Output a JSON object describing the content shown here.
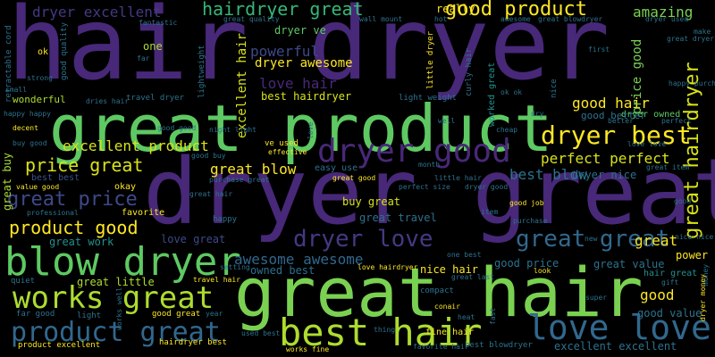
{
  "background": "#000000",
  "palette": {
    "dark_purple": "#482878",
    "blue": "#3b528b",
    "teal": "#2c728e",
    "teal_green": "#21918c",
    "green": "#28ae80",
    "light_green": "#5ec962",
    "lime": "#addc30",
    "yellow": "#fde725"
  },
  "words": [
    {
      "text": "hair dryer",
      "color": "#482878"
    },
    {
      "text": "dryer great",
      "color": "#482878"
    },
    {
      "text": "great product",
      "color": "#5ec962"
    },
    {
      "text": "great hair",
      "color": "#7ad151"
    },
    {
      "text": "blow dryer",
      "color": "#5ec962"
    },
    {
      "text": "dryer good",
      "color": "#482878"
    },
    {
      "text": "best hair",
      "color": "#addc30"
    },
    {
      "text": "works great",
      "color": "#addc30"
    },
    {
      "text": "love love",
      "color": "#31688e"
    },
    {
      "text": "product great",
      "color": "#31688e"
    },
    {
      "text": "great hairdryer",
      "color": "#d8e219"
    },
    {
      "text": "dryer best",
      "color": "#fde725"
    },
    {
      "text": "great great",
      "color": "#31688e"
    },
    {
      "text": "dryer love",
      "color": "#443983"
    },
    {
      "text": "good product",
      "color": "#fde725"
    },
    {
      "text": "hairdryer great",
      "color": "#35b779"
    },
    {
      "text": "great price",
      "color": "#3e4989"
    },
    {
      "text": "price great",
      "color": "#d8e219"
    },
    {
      "text": "product good",
      "color": "#fde725"
    },
    {
      "text": "awesome awesome",
      "color": "#31688e"
    },
    {
      "text": "dryer excellent",
      "color": "#443983"
    },
    {
      "text": "excellent product",
      "color": "#d8e219"
    },
    {
      "text": "perfect perfect",
      "color": "#d8e219"
    },
    {
      "text": "great blow",
      "color": "#fde725"
    },
    {
      "text": "love hair",
      "color": "#482878"
    },
    {
      "text": "powerful",
      "color": "#3e4989"
    },
    {
      "text": "good hair",
      "color": "#fde725"
    },
    {
      "text": "amazing",
      "color": "#7ad151"
    },
    {
      "text": "best blow",
      "color": "#2c728e"
    },
    {
      "text": "dryer awesome",
      "color": "#fde725"
    },
    {
      "text": "dryer ve",
      "color": "#5ec962"
    },
    {
      "text": "price good",
      "color": "#7ad151"
    },
    {
      "text": "best hairdryer",
      "color": "#d8e219"
    },
    {
      "text": "excellent hair",
      "color": "#d8e219"
    },
    {
      "text": "dryer owned",
      "color": "#5ec962"
    },
    {
      "text": "great value",
      "color": "#2c728e"
    },
    {
      "text": "good price",
      "color": "#2c728e"
    },
    {
      "text": "love great",
      "color": "#3e4989"
    },
    {
      "text": "great work",
      "color": "#21918c"
    },
    {
      "text": "great little",
      "color": "#addc30"
    },
    {
      "text": "buy great",
      "color": "#d8e219"
    },
    {
      "text": "great travel",
      "color": "#2c728e"
    },
    {
      "text": "nice hair",
      "color": "#fde725"
    },
    {
      "text": "owned best",
      "color": "#2c728e"
    },
    {
      "text": "good value",
      "color": "#2c728e"
    },
    {
      "text": "excellent excellent",
      "color": "#2c728e"
    },
    {
      "text": "power",
      "color": "#fde725"
    },
    {
      "text": "good",
      "color": "#fde725"
    },
    {
      "text": "hair great",
      "color": "#21918c"
    },
    {
      "text": "dryer nice",
      "color": "#2c728e"
    },
    {
      "text": "good better",
      "color": "#2c728e"
    },
    {
      "text": "great buy",
      "color": "#addc30"
    },
    {
      "text": "best best",
      "color": "#3b528b"
    },
    {
      "text": "one",
      "color": "#addc30"
    },
    {
      "text": "really",
      "color": "#fde725"
    },
    {
      "text": "good quality",
      "color": "#2c728e"
    },
    {
      "text": "great quality",
      "color": "#2c728e"
    },
    {
      "text": "wall mount",
      "color": "#2c728e"
    },
    {
      "text": "great blowdryer",
      "color": "#2c728e"
    },
    {
      "text": "dryer used",
      "color": "#2c728e"
    },
    {
      "text": "fantastic",
      "color": "#2c728e"
    },
    {
      "text": "lightweight",
      "color": "#2c728e"
    },
    {
      "text": "retractable cord",
      "color": "#2c728e"
    },
    {
      "text": "ok",
      "color": "#fde725"
    },
    {
      "text": "far",
      "color": "#2c728e"
    },
    {
      "text": "strong",
      "color": "#2c728e"
    },
    {
      "text": "wonderful",
      "color": "#addc30"
    },
    {
      "text": "dries hair",
      "color": "#2c728e"
    },
    {
      "text": "travel dryer",
      "color": "#2c728e"
    },
    {
      "text": "light weight",
      "color": "#2c728e"
    },
    {
      "text": "little dryer",
      "color": "#fde725"
    },
    {
      "text": "worked great",
      "color": "#21918c"
    },
    {
      "text": "curly hair",
      "color": "#2c728e"
    },
    {
      "text": "well",
      "color": "#2c728e"
    },
    {
      "text": "cheap",
      "color": "#2c728e"
    },
    {
      "text": "hot",
      "color": "#2c728e"
    },
    {
      "text": "ve used",
      "color": "#fde725"
    },
    {
      "text": "effective",
      "color": "#fde725"
    },
    {
      "text": "easy use",
      "color": "#2c728e"
    },
    {
      "text": "perfect size",
      "color": "#2c728e"
    },
    {
      "text": "little hair",
      "color": "#2c728e"
    },
    {
      "text": "month",
      "color": "#2c728e"
    },
    {
      "text": "value good",
      "color": "#fde725"
    },
    {
      "text": "okay",
      "color": "#fde725"
    },
    {
      "text": "professional",
      "color": "#2c728e"
    },
    {
      "text": "favorite",
      "color": "#fde725"
    },
    {
      "text": "happy",
      "color": "#2c728e"
    },
    {
      "text": "item",
      "color": "#2c728e"
    },
    {
      "text": "purchase",
      "color": "#2c728e"
    },
    {
      "text": "new",
      "color": "#2c728e"
    },
    {
      "text": "nice nice",
      "color": "#2c728e"
    },
    {
      "text": "great item",
      "color": "#2c728e"
    },
    {
      "text": "gift",
      "color": "#2c728e"
    },
    {
      "text": "quiet",
      "color": "#2c728e"
    },
    {
      "text": "setting",
      "color": "#2c728e"
    },
    {
      "text": "travel hair",
      "color": "#fde725"
    },
    {
      "text": "compact",
      "color": "#2c728e"
    },
    {
      "text": "great last",
      "color": "#2c728e"
    },
    {
      "text": "super",
      "color": "#2c728e"
    },
    {
      "text": "look",
      "color": "#fde725"
    },
    {
      "text": "far good",
      "color": "#2c728e"
    },
    {
      "text": "light",
      "color": "#2c728e"
    },
    {
      "text": "good great",
      "color": "#fde725"
    },
    {
      "text": "conair",
      "color": "#fde725"
    },
    {
      "text": "heat",
      "color": "#2c728e"
    },
    {
      "text": "fine hair",
      "color": "#fde725"
    },
    {
      "text": "fast",
      "color": "#2c728e"
    },
    {
      "text": "product excellent",
      "color": "#fde725"
    },
    {
      "text": "hairdryer best",
      "color": "#fde725"
    },
    {
      "text": "used best",
      "color": "#2c728e"
    },
    {
      "text": "favorite hair",
      "color": "#2c728e"
    },
    {
      "text": "best blowdryer",
      "color": "#2c728e"
    },
    {
      "text": "works fine",
      "color": "#fde725"
    },
    {
      "text": "love hairdryer",
      "color": "#fde725"
    },
    {
      "text": "dry",
      "color": "#2c728e"
    },
    {
      "text": "first",
      "color": "#2c728e"
    },
    {
      "text": "awesome",
      "color": "#2c728e"
    },
    {
      "text": "make",
      "color": "#2c728e"
    },
    {
      "text": "money",
      "color": "#2c728e"
    },
    {
      "text": "happy happy",
      "color": "#2c728e"
    },
    {
      "text": "small",
      "color": "#2c728e"
    },
    {
      "text": "decent",
      "color": "#fde725"
    },
    {
      "text": "buy good",
      "color": "#2c728e"
    },
    {
      "text": "good buy",
      "color": "#2c728e"
    },
    {
      "text": "great good",
      "color": "#fde725"
    },
    {
      "text": "good job",
      "color": "#fde725"
    },
    {
      "text": "ok ok",
      "color": "#2c728e"
    },
    {
      "text": "nice",
      "color": "#2c728e"
    },
    {
      "text": "happy purchase",
      "color": "#2c728e"
    },
    {
      "text": "dryer money",
      "color": "#fde725"
    },
    {
      "text": "great dryer",
      "color": "#2c728e"
    },
    {
      "text": "perfect",
      "color": "#2c728e"
    },
    {
      "text": "purchase great",
      "color": "#2c728e"
    },
    {
      "text": "great",
      "color": "#fde725"
    },
    {
      "text": "better",
      "color": "#2c728e"
    },
    {
      "text": "one best",
      "color": "#2c728e"
    },
    {
      "text": "good",
      "color": "#2c728e"
    },
    {
      "text": "year",
      "color": "#2c728e"
    },
    {
      "text": "good good",
      "color": "#2c728e"
    },
    {
      "text": "thing",
      "color": "#2c728e"
    },
    {
      "text": "works well",
      "color": "#2c728e"
    },
    {
      "text": "night light",
      "color": "#2c728e"
    },
    {
      "text": "love love",
      "color": "#2c728e"
    },
    {
      "text": "great hair",
      "color": "#2c728e"
    },
    {
      "text": "dryer good",
      "color": "#2c728e"
    },
    {
      "text": "love",
      "color": "#2c728e"
    }
  ]
}
